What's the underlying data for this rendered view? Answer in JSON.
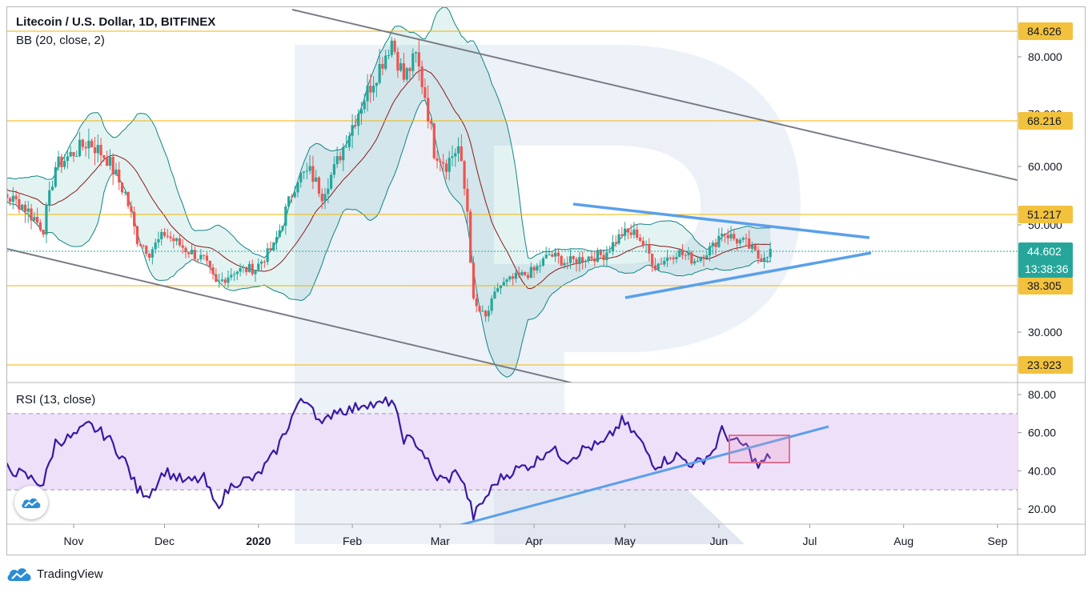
{
  "header": {
    "symbol_title": "Litecoin / U.S. Dollar, 1D, BITFINEX",
    "bb_label": "BB (20, close, 2)",
    "rsi_label": "RSI (13, close)"
  },
  "footer": {
    "brand": "TradingView"
  },
  "colors": {
    "bull": "#26a69a",
    "bear": "#ef5350",
    "bb_line": "#138484",
    "bb_fill": "#26a69a",
    "basis": "#8b1a1a",
    "level": "#f2b600",
    "tag": "#f2c23d",
    "trend_blue": "#5aa0ea",
    "trend_gray": "#787b86",
    "rsi_line": "#3a1aa0",
    "rsi_band": "#f1e4fb",
    "price_tag": "#26a69a"
  },
  "chart_data": [
    {
      "type": "candlestick",
      "title": "Litecoin / U.S. Dollar, 1D, BITFINEX",
      "indicator": "BB (20, close, 2)",
      "x_labels": [
        "Nov",
        "Dec",
        "2020",
        "Feb",
        "Mar",
        "Apr",
        "May",
        "Jun",
        "Jul",
        "Aug",
        "Sep"
      ],
      "y_ticks": [
        "30.000",
        "60.000",
        "70.000",
        "80.000"
      ],
      "price_axis_extra": [
        "50.000"
      ],
      "levels": [
        {
          "label": "84.626",
          "value": 84.626
        },
        {
          "label": "68.216",
          "value": 68.216
        },
        {
          "label": "51.217",
          "value": 51.217
        },
        {
          "label": "38.305",
          "value": 38.305
        },
        {
          "label": "23.923",
          "value": 23.923
        }
      ],
      "current_price": {
        "label": "44.602",
        "value": 44.602
      },
      "countdown": "13:38:36",
      "ohlc_close_path": [
        [
          "2019-10-01",
          57.5
        ],
        [
          "2019-10-08",
          55.0
        ],
        [
          "2019-10-15",
          53.0
        ],
        [
          "2019-10-22",
          49.0
        ],
        [
          "2019-10-26",
          60.0
        ],
        [
          "2019-11-01",
          62.5
        ],
        [
          "2019-11-06",
          64.5
        ],
        [
          "2019-11-12",
          61.5
        ],
        [
          "2019-11-18",
          55.0
        ],
        [
          "2019-11-22",
          47.0
        ],
        [
          "2019-11-26",
          44.5
        ],
        [
          "2019-12-01",
          48.0
        ],
        [
          "2019-12-08",
          45.0
        ],
        [
          "2019-12-14",
          43.0
        ],
        [
          "2019-12-18",
          38.5
        ],
        [
          "2019-12-24",
          41.0
        ],
        [
          "2019-12-31",
          41.5
        ],
        [
          "2020-01-06",
          45.5
        ],
        [
          "2020-01-10",
          52.0
        ],
        [
          "2020-01-14",
          58.0
        ],
        [
          "2020-01-18",
          59.0
        ],
        [
          "2020-01-22",
          55.0
        ],
        [
          "2020-01-26",
          59.5
        ],
        [
          "2020-02-01",
          67.5
        ],
        [
          "2020-02-05",
          72.5
        ],
        [
          "2020-02-09",
          77.0
        ],
        [
          "2020-02-14",
          83.0
        ],
        [
          "2020-02-18",
          76.0
        ],
        [
          "2020-02-22",
          80.0
        ],
        [
          "2020-02-25",
          73.0
        ],
        [
          "2020-02-28",
          63.0
        ],
        [
          "2020-03-03",
          60.5
        ],
        [
          "2020-03-07",
          63.5
        ],
        [
          "2020-03-10",
          52.0
        ],
        [
          "2020-03-12",
          35.0
        ],
        [
          "2020-03-16",
          32.5
        ],
        [
          "2020-03-20",
          38.0
        ],
        [
          "2020-03-25",
          39.5
        ],
        [
          "2020-04-01",
          41.0
        ],
        [
          "2020-04-06",
          44.0
        ],
        [
          "2020-04-12",
          42.5
        ],
        [
          "2020-04-18",
          43.5
        ],
        [
          "2020-04-24",
          44.0
        ],
        [
          "2020-04-30",
          48.0
        ],
        [
          "2020-05-05",
          48.0
        ],
        [
          "2020-05-11",
          42.0
        ],
        [
          "2020-05-18",
          44.5
        ],
        [
          "2020-05-24",
          43.0
        ],
        [
          "2020-05-30",
          45.5
        ],
        [
          "2020-06-02",
          48.5
        ],
        [
          "2020-06-06",
          47.0
        ],
        [
          "2020-06-10",
          46.0
        ],
        [
          "2020-06-14",
          43.5
        ],
        [
          "2020-06-18",
          44.6
        ]
      ],
      "rsi": {
        "label": "RSI (13, close)",
        "y_ticks": [
          "20.00",
          "40.00",
          "60.00",
          "80.00"
        ],
        "band": [
          30,
          70
        ],
        "path": [
          [
            "2019-10-01",
            40
          ],
          [
            "2019-10-08",
            43
          ],
          [
            "2019-10-15",
            38
          ],
          [
            "2019-10-22",
            33
          ],
          [
            "2019-10-26",
            55
          ],
          [
            "2019-11-01",
            58
          ],
          [
            "2019-11-06",
            64
          ],
          [
            "2019-11-12",
            58
          ],
          [
            "2019-11-18",
            45
          ],
          [
            "2019-11-22",
            30
          ],
          [
            "2019-11-26",
            28
          ],
          [
            "2019-12-01",
            40
          ],
          [
            "2019-12-08",
            34
          ],
          [
            "2019-12-14",
            36
          ],
          [
            "2019-12-18",
            21
          ],
          [
            "2019-12-24",
            34
          ],
          [
            "2019-12-31",
            36
          ],
          [
            "2020-01-06",
            48
          ],
          [
            "2020-01-10",
            61
          ],
          [
            "2020-01-14",
            75
          ],
          [
            "2020-01-18",
            77
          ],
          [
            "2020-01-22",
            63
          ],
          [
            "2020-01-26",
            72
          ],
          [
            "2020-02-01",
            72
          ],
          [
            "2020-02-05",
            76
          ],
          [
            "2020-02-09",
            74
          ],
          [
            "2020-02-14",
            77
          ],
          [
            "2020-02-18",
            57
          ],
          [
            "2020-02-22",
            55
          ],
          [
            "2020-02-25",
            48
          ],
          [
            "2020-02-28",
            37
          ],
          [
            "2020-03-03",
            35
          ],
          [
            "2020-03-07",
            40
          ],
          [
            "2020-03-10",
            27
          ],
          [
            "2020-03-12",
            16
          ],
          [
            "2020-03-16",
            26
          ],
          [
            "2020-03-20",
            35
          ],
          [
            "2020-03-25",
            40
          ],
          [
            "2020-04-01",
            44
          ],
          [
            "2020-04-06",
            52
          ],
          [
            "2020-04-12",
            46
          ],
          [
            "2020-04-18",
            52
          ],
          [
            "2020-04-24",
            54
          ],
          [
            "2020-04-30",
            66
          ],
          [
            "2020-05-05",
            58
          ],
          [
            "2020-05-11",
            43
          ],
          [
            "2020-05-18",
            48
          ],
          [
            "2020-05-24",
            43
          ],
          [
            "2020-05-30",
            50
          ],
          [
            "2020-06-02",
            61
          ],
          [
            "2020-06-06",
            55
          ],
          [
            "2020-06-10",
            53
          ],
          [
            "2020-06-14",
            42
          ],
          [
            "2020-06-18",
            48
          ]
        ]
      }
    }
  ]
}
